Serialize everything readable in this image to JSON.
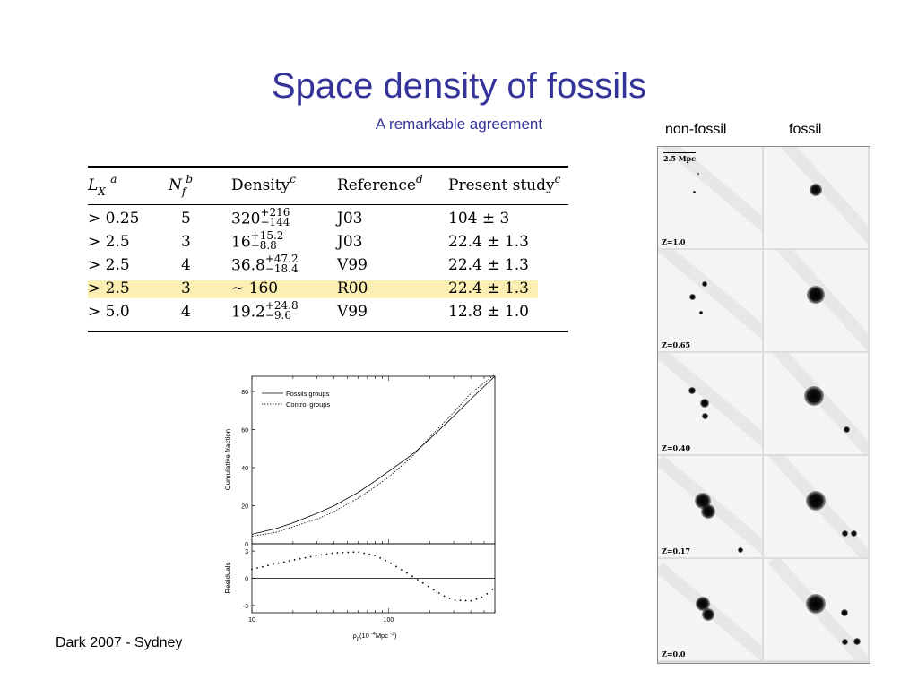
{
  "slide": {
    "title": "Space density of fossils",
    "subtitle": "A remarkable agreement",
    "footer": "Dark 2007 - Sydney"
  },
  "table": {
    "headers": {
      "lx": "L",
      "lx_sub": "X",
      "lx_sup": "a",
      "nf": "N",
      "nf_sub": "f",
      "nf_sup": "b",
      "density": "Density",
      "density_sup": "c",
      "reference": "Reference",
      "reference_sup": "d",
      "present": "Present study",
      "present_sup": "c"
    },
    "rows": [
      {
        "lx": "> 0.25",
        "nf": "5",
        "density": "320",
        "dens_up": "+216",
        "dens_dn": "−144",
        "ref": "J03",
        "present": "104 ± 3",
        "highlight": false
      },
      {
        "lx": "> 2.5",
        "nf": "3",
        "density": "16",
        "dens_up": "+15.2",
        "dens_dn": "−8.8",
        "ref": "J03",
        "present": "22.4 ± 1.3",
        "highlight": false
      },
      {
        "lx": "> 2.5",
        "nf": "4",
        "density": "36.8",
        "dens_up": "+47.2",
        "dens_dn": "−18.4",
        "ref": "V99",
        "present": "22.4 ± 1.3",
        "highlight": false
      },
      {
        "lx": "> 2.5",
        "nf": "3",
        "density": "∼ 160",
        "dens_up": "",
        "dens_dn": "",
        "ref": "R00",
        "present": "22.4 ± 1.3",
        "highlight": true
      },
      {
        "lx": "> 5.0",
        "nf": "4",
        "density": "19.2",
        "dens_up": "+24.8",
        "dens_dn": "−9.6",
        "ref": "V99",
        "present": "12.8 ± 1.0",
        "highlight": false
      }
    ]
  },
  "images": {
    "col_nonfossil": "non-fossil",
    "col_fossil": "fossil",
    "scale_bar": "2.5 Mpc",
    "redshifts": [
      "Z=1.0",
      "Z=0.65",
      "Z=0.40",
      "Z=0.17",
      "Z=0.0"
    ]
  },
  "chart_data": {
    "type": "line",
    "x_scale": "log",
    "xlim": [
      10,
      600
    ],
    "xticks": [
      "10",
      "100"
    ],
    "xlabel_base": "ρ",
    "xlabel_sub": "β",
    "xlabel_rest": "(10",
    "xlabel_exp": "-4",
    "xlabel_unit": "Mpc",
    "xlabel_unit_exp": "-3",
    "xlabel_close": ")",
    "top_panel": {
      "ylabel": "Cumulative fraction",
      "ylim": [
        0,
        88
      ],
      "yticks": [
        "0",
        "20",
        "40",
        "60",
        "80"
      ],
      "legend_placement": "top-left",
      "series": [
        {
          "name": "Fossils groups",
          "style": "solid",
          "x": [
            10,
            15,
            20,
            30,
            40,
            60,
            80,
            100,
            150,
            200,
            300,
            400,
            600
          ],
          "y": [
            5,
            8,
            11,
            16,
            20,
            27,
            33,
            38,
            47,
            55,
            67,
            76,
            88
          ]
        },
        {
          "name": "Control groups",
          "style": "dotted",
          "x": [
            10,
            15,
            20,
            30,
            40,
            60,
            80,
            100,
            150,
            200,
            300,
            400,
            600
          ],
          "y": [
            4,
            6,
            9,
            13,
            17,
            24,
            30,
            35,
            46,
            56,
            69,
            79,
            89
          ]
        }
      ]
    },
    "bottom_panel": {
      "ylabel": "Residuals",
      "ylim": [
        -3.8,
        3.8
      ],
      "yticks": [
        "3",
        "0",
        "-3"
      ],
      "series": [
        {
          "name": "",
          "style": "dotted",
          "x": [
            10,
            15,
            20,
            30,
            40,
            60,
            80,
            100,
            150,
            200,
            250,
            300,
            400,
            500,
            600
          ],
          "y": [
            1.0,
            1.6,
            2.0,
            2.5,
            2.8,
            2.9,
            2.5,
            1.8,
            0.2,
            -1.0,
            -1.9,
            -2.4,
            -2.5,
            -2.0,
            -1.0
          ]
        }
      ]
    }
  }
}
